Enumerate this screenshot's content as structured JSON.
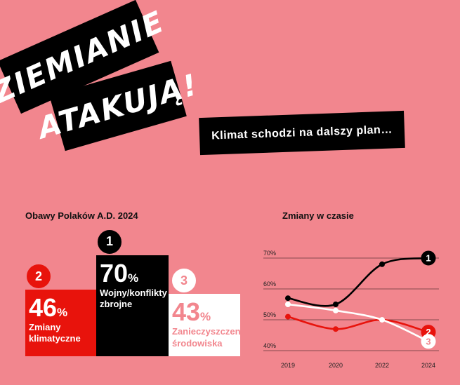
{
  "headline": {
    "line1": "ZIEMIANIE",
    "line2": "ATAKUJĄ!"
  },
  "subtitle": "Klimat schodzi na dalszy plan…",
  "colors": {
    "background": "#f2868e",
    "red": "#e8130c",
    "black": "#000000",
    "white": "#ffffff",
    "light_text": "#f2868e"
  },
  "chart_data": [
    {
      "type": "bar",
      "title": "Obawy Polaków A.D. 2024",
      "categories": [
        "Zmiany klimatyczne",
        "Wojny/konflikty zbrojne",
        "Zanieczyszczenie środowiska"
      ],
      "values": [
        46,
        70,
        43
      ],
      "ranks": [
        "2",
        "1",
        "3"
      ],
      "value_labels": [
        "46",
        "70",
        "43"
      ],
      "unit": "%",
      "label_lines": [
        [
          "Zmiany",
          "klimatyczne"
        ],
        [
          "Wojny/konflikty",
          "zbrojne"
        ],
        [
          "Zanieczyszczenie",
          "środowiska"
        ]
      ]
    },
    {
      "type": "line",
      "title": "Zmiany w czasie",
      "x": [
        "2019",
        "2020",
        "2022",
        "2024"
      ],
      "ylim": [
        40,
        70
      ],
      "yticks": [
        "40%",
        "50%",
        "60%",
        "70%"
      ],
      "ytick_values": [
        40,
        50,
        60,
        70
      ],
      "grid": true,
      "series": [
        {
          "rank": "1",
          "values": [
            57,
            55,
            68,
            70
          ]
        },
        {
          "rank": "2",
          "values": [
            51,
            47,
            50,
            46
          ]
        },
        {
          "rank": "3",
          "values": [
            55,
            53,
            50,
            43
          ]
        }
      ]
    }
  ]
}
